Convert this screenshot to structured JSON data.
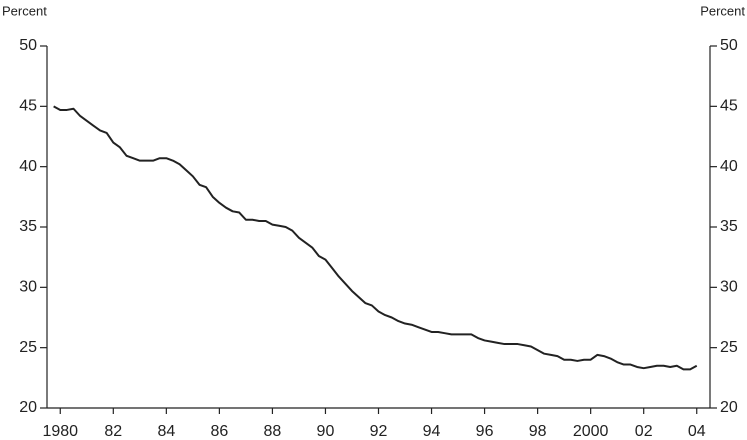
{
  "chart_data": {
    "type": "line",
    "ylabel": "Percent",
    "y2label": "Percent",
    "x": [
      1979.75,
      1980,
      1980.25,
      1980.5,
      1980.75,
      1981,
      1981.25,
      1981.5,
      1981.75,
      1982,
      1982.25,
      1982.5,
      1982.75,
      1983,
      1983.25,
      1983.5,
      1983.75,
      1984,
      1984.25,
      1984.5,
      1984.75,
      1985,
      1985.25,
      1985.5,
      1985.75,
      1986,
      1986.25,
      1986.5,
      1986.75,
      1987,
      1987.25,
      1987.5,
      1987.75,
      1988,
      1988.25,
      1988.5,
      1988.75,
      1989,
      1989.25,
      1989.5,
      1989.75,
      1990,
      1990.25,
      1990.5,
      1990.75,
      1991,
      1991.25,
      1991.5,
      1991.75,
      1992,
      1992.25,
      1992.5,
      1992.75,
      1993,
      1993.25,
      1993.5,
      1993.75,
      1994,
      1994.25,
      1994.5,
      1994.75,
      1995,
      1995.25,
      1995.5,
      1995.75,
      1996,
      1996.25,
      1996.5,
      1996.75,
      1997,
      1997.25,
      1997.5,
      1997.75,
      1998,
      1998.25,
      1998.5,
      1998.75,
      1999,
      1999.25,
      1999.5,
      1999.75,
      2000,
      2000.25,
      2000.5,
      2000.75,
      2001,
      2001.25,
      2001.5,
      2001.75,
      2002,
      2002.25,
      2002.5,
      2002.75,
      2003,
      2003.25,
      2003.5,
      2003.75,
      2004
    ],
    "series": [
      {
        "color": "#222222",
        "values": [
          45.0,
          44.7,
          44.7,
          44.8,
          44.2,
          43.8,
          43.4,
          43.0,
          42.8,
          42.0,
          41.6,
          40.9,
          40.7,
          40.5,
          40.5,
          40.5,
          40.7,
          40.7,
          40.5,
          40.2,
          39.7,
          39.2,
          38.5,
          38.3,
          37.5,
          37.0,
          36.6,
          36.3,
          36.2,
          35.6,
          35.6,
          35.5,
          35.5,
          35.2,
          35.1,
          35.0,
          34.7,
          34.1,
          33.7,
          33.3,
          32.6,
          32.3,
          31.6,
          30.9,
          30.3,
          29.7,
          29.2,
          28.7,
          28.5,
          28.0,
          27.7,
          27.5,
          27.2,
          27.0,
          26.9,
          26.7,
          26.5,
          26.3,
          26.3,
          26.2,
          26.1,
          26.1,
          26.1,
          26.1,
          25.8,
          25.6,
          25.5,
          25.4,
          25.3,
          25.3,
          25.3,
          25.2,
          25.1,
          24.8,
          24.5,
          24.4,
          24.3,
          24.0,
          24.0,
          23.9,
          24.0,
          24.0,
          24.4,
          24.3,
          24.1,
          23.8,
          23.6,
          23.6,
          23.4,
          23.3,
          23.4,
          23.5,
          23.5,
          23.4,
          23.5,
          23.2,
          23.2,
          23.5
        ]
      }
    ],
    "xlim": [
      1979.5,
      2004.5
    ],
    "xticks": [
      {
        "value": 1980,
        "label": "1980"
      },
      {
        "value": 1982,
        "label": "82"
      },
      {
        "value": 1984,
        "label": "84"
      },
      {
        "value": 1986,
        "label": "86"
      },
      {
        "value": 1988,
        "label": "88"
      },
      {
        "value": 1990,
        "label": "90"
      },
      {
        "value": 1992,
        "label": "92"
      },
      {
        "value": 1994,
        "label": "94"
      },
      {
        "value": 1996,
        "label": "96"
      },
      {
        "value": 1998,
        "label": "98"
      },
      {
        "value": 2000,
        "label": "2000"
      },
      {
        "value": 2002,
        "label": "02"
      },
      {
        "value": 2004,
        "label": "04"
      }
    ],
    "ylim": [
      20,
      50
    ],
    "yticks": [
      20,
      25,
      30,
      35,
      40,
      45,
      50
    ],
    "y2lim": [
      20,
      50
    ],
    "y2ticks": [
      20,
      25,
      30,
      35,
      40,
      45,
      50
    ]
  }
}
